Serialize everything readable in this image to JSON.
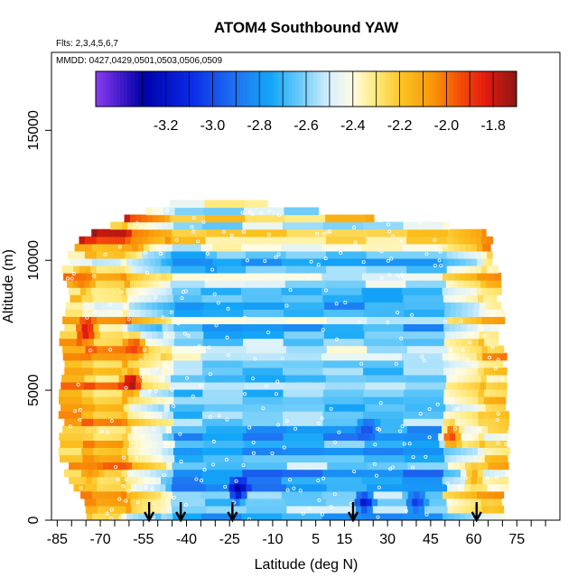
{
  "chart_data": {
    "type": "heatmap",
    "title": "ATOM4 Southbound YAW",
    "annotation_flights": "Flts: 2,3,4,5,6,7",
    "annotation_dates": "MMDD: 0427,0429,0501,0503,0506,0509",
    "xlabel": "Latitude (deg N)",
    "ylabel": "Altitude (m)",
    "xlim": [
      -87,
      90
    ],
    "ylim": [
      0,
      18000
    ],
    "x_ticks": [
      -85,
      -70,
      -55,
      -40,
      -25,
      -10,
      5,
      15,
      30,
      45,
      60,
      75
    ],
    "x_minor_ticks": [
      -80,
      -75,
      -65,
      -60,
      -50,
      -45,
      -35,
      -30,
      -20,
      -15,
      -5,
      0,
      10,
      20,
      25,
      35,
      40,
      50,
      55,
      65,
      70,
      80,
      85
    ],
    "y_ticks": [
      0,
      5000,
      10000,
      15000
    ],
    "colorbar": {
      "range": [
        -3.5,
        -1.7
      ],
      "ticks": [
        -3.2,
        -3.0,
        -2.8,
        -2.6,
        -2.4,
        -2.2,
        -2.0,
        -1.8
      ],
      "stops": [
        {
          "value": -3.5,
          "color": "#8a3cf0"
        },
        {
          "value": -3.3,
          "color": "#0000a8"
        },
        {
          "value": -3.1,
          "color": "#0a28e6"
        },
        {
          "value": -2.9,
          "color": "#1f74f2"
        },
        {
          "value": -2.75,
          "color": "#13a6f8"
        },
        {
          "value": -2.62,
          "color": "#6fcdf9"
        },
        {
          "value": -2.5,
          "color": "#d8f0fc"
        },
        {
          "value": -2.4,
          "color": "#fffce4"
        },
        {
          "value": -2.3,
          "color": "#ffe978"
        },
        {
          "value": -2.18,
          "color": "#fbc01e"
        },
        {
          "value": -2.05,
          "color": "#f99208"
        },
        {
          "value": -1.95,
          "color": "#f55208"
        },
        {
          "value": -1.83,
          "color": "#e31a10"
        },
        {
          "value": -1.7,
          "color": "#8a1714"
        }
      ]
    },
    "profile_arrows_lat": [
      -53,
      -42,
      -24,
      18,
      61
    ],
    "coverage": [
      {
        "alt": 12200,
        "lat_min": -44,
        "lat_max": -13
      },
      {
        "alt": 11700,
        "lat_min": -59,
        "lat_max": 17
      },
      {
        "alt": 11200,
        "lat_min": -71,
        "lat_max": 65
      },
      {
        "alt": 10600,
        "lat_min": -80,
        "lat_max": 66
      },
      {
        "alt": 10000,
        "lat_min": -82,
        "lat_max": 66
      },
      {
        "alt": 9500,
        "lat_min": -82,
        "lat_max": 69
      },
      {
        "alt": 8500,
        "lat_min": -82,
        "lat_max": 69
      },
      {
        "alt": 6500,
        "lat_min": -83,
        "lat_max": 70
      },
      {
        "alt": 5000,
        "lat_min": -84,
        "lat_max": 72
      },
      {
        "alt": 3000,
        "lat_min": -84,
        "lat_max": 72
      },
      {
        "alt": 1500,
        "lat_min": -81,
        "lat_max": 71
      },
      {
        "alt": 800,
        "lat_min": -77,
        "lat_max": 71
      },
      {
        "alt": 0,
        "lat_min": -73,
        "lat_max": 70
      }
    ],
    "hotspots": [
      {
        "lat": -75,
        "alt": 7300,
        "value": -1.78
      },
      {
        "lat": -58,
        "alt": 6700,
        "value": -1.9
      },
      {
        "lat": -59,
        "alt": 5300,
        "value": -1.72
      },
      {
        "lat": -58,
        "alt": 10600,
        "value": -2.05
      },
      {
        "lat": -76,
        "alt": 9300,
        "value": -2.0
      },
      {
        "lat": 52,
        "alt": 3300,
        "value": -1.9
      },
      {
        "lat": -73,
        "alt": 2000,
        "value": -2.05
      },
      {
        "lat": 60,
        "alt": 1700,
        "value": -2.1
      }
    ],
    "deep_lows": [
      {
        "lat": -22,
        "alt": 1200,
        "value": -3.3
      },
      {
        "lat": 22,
        "alt": 700,
        "value": -3.2
      },
      {
        "lat": 40,
        "alt": 700,
        "value": -3.05
      },
      {
        "lat": 23,
        "alt": 3500,
        "value": -3.0
      }
    ]
  }
}
